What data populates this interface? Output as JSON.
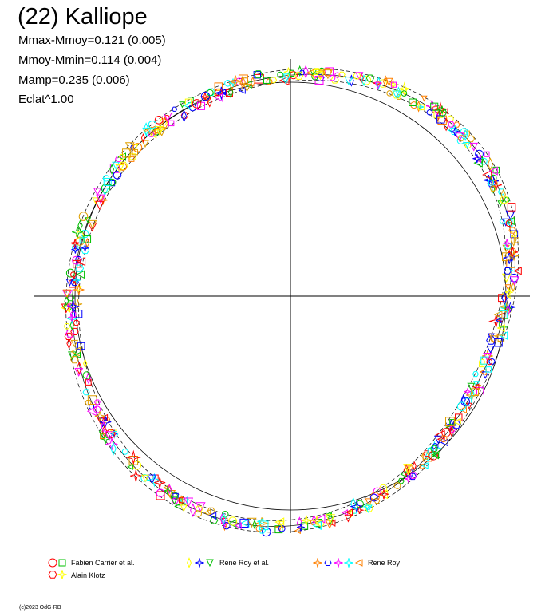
{
  "title": "(22) Kalliope",
  "stats": [
    "Mmax-Mmoy=0.121 (0.005)",
    "Mmoy-Mmin=0.114 (0.004)",
    "Mamp=0.235 (0.006)",
    "Eclat^1.00"
  ],
  "copyright": "(c)2023 OdG-RB",
  "chart_data": {
    "type": "scatter",
    "title": "(22) Kalliope",
    "grid": false,
    "description_of_form": "polar lightcurve: brightness deviation plotted along rotation phase around reference circle",
    "reference_circle": true,
    "dashed_envelope": true,
    "legend_placement": "bottom",
    "series": [
      {
        "name": "Fabien Carrier et al.",
        "markers": [
          "circle",
          "square"
        ],
        "colors": [
          "#ff0000",
          "#00c000"
        ]
      },
      {
        "name": "Rene Roy et al.",
        "markers": [
          "diamond",
          "star",
          "triangle-down"
        ],
        "colors": [
          "#ffff00",
          "#0000ff",
          "#00c000"
        ]
      },
      {
        "name": "Rene Roy",
        "markers": [
          "star4",
          "hexagon",
          "trefoil",
          "asterisk",
          "triangle-left"
        ],
        "colors": [
          "#ff8000",
          "#0000ff",
          "#ff00ff",
          "#00ffff",
          "#ff8000"
        ]
      },
      {
        "name": "Alain Klotz",
        "markers": [
          "pentagon",
          "star6"
        ],
        "colors": [
          "#ff0000",
          "#ffff00"
        ]
      }
    ]
  }
}
